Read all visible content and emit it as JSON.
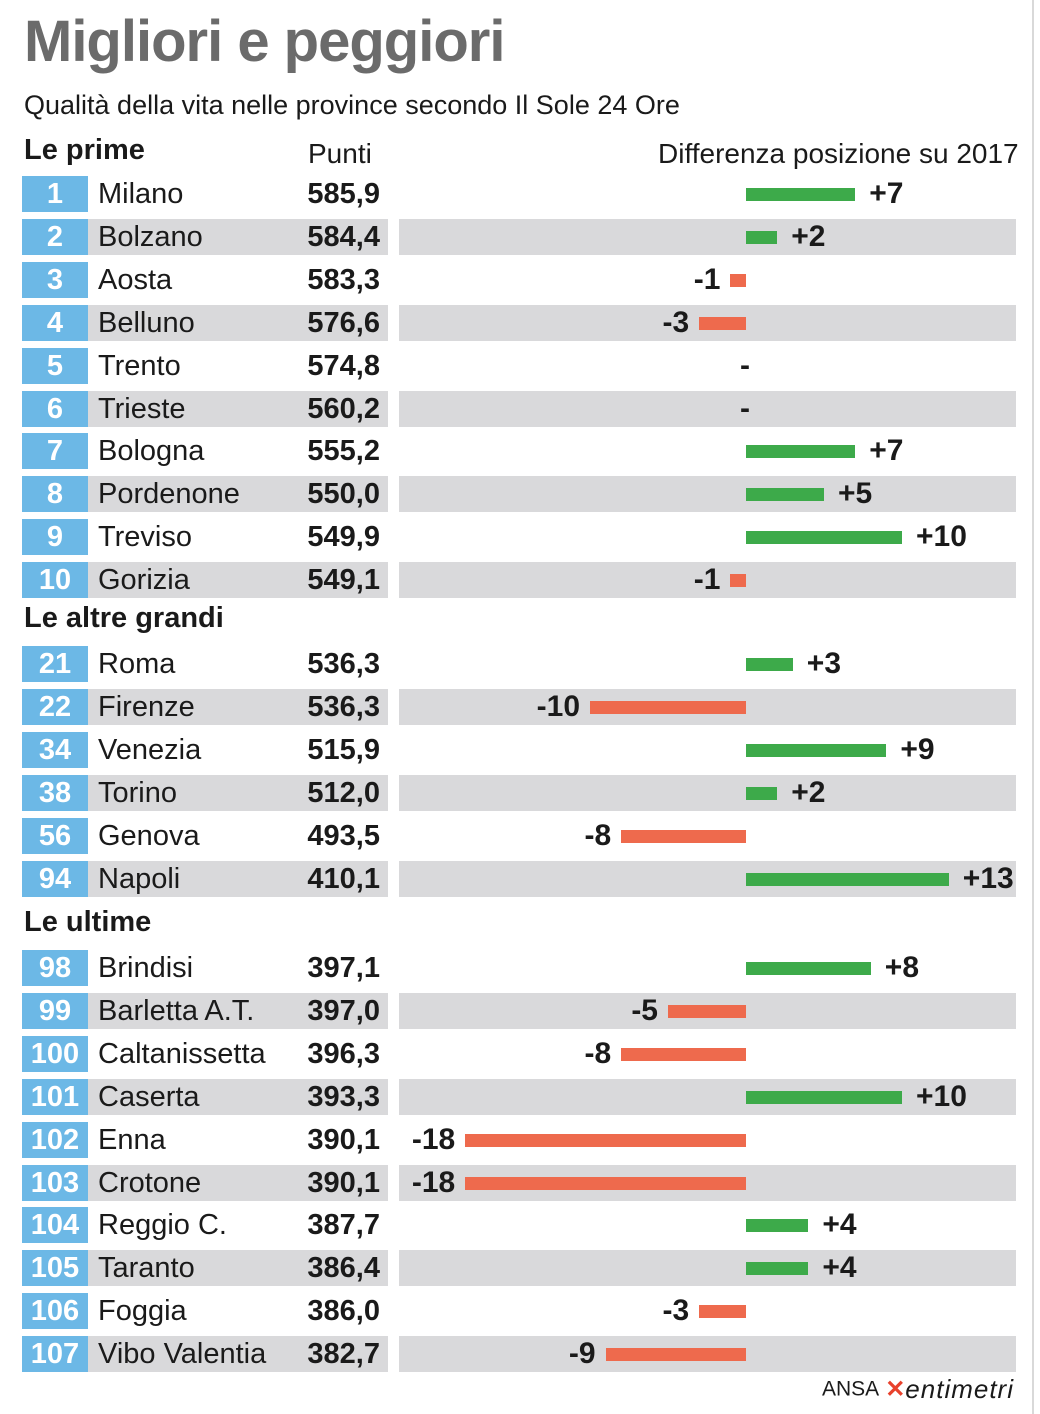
{
  "title": "Migliori e peggiori",
  "subtitle": "Qualità della vita nelle province secondo Il Sole 24 Ore",
  "headers": {
    "points": "Punti",
    "diff": "Differenza posizione su 2017"
  },
  "colors": {
    "rank_box": "#6cb8e6",
    "positive": "#3daa4a",
    "negative": "#ee6a4d",
    "row_shade": "#d9d9db"
  },
  "footer": {
    "ansa": "ANSA",
    "brand": "entimetri"
  },
  "chart_data": {
    "type": "bar",
    "title": "Migliori e peggiori",
    "subtitle": "Qualità della vita nelle province secondo Il Sole 24 Ore",
    "xlabel": "Differenza posizione su 2017",
    "ylabel": "Punti",
    "groups": [
      {
        "label": "Le prime",
        "rows": [
          {
            "rank": "1",
            "name": "Milano",
            "points": "585,9",
            "diff": 7,
            "diff_label": "+7"
          },
          {
            "rank": "2",
            "name": "Bolzano",
            "points": "584,4",
            "diff": 2,
            "diff_label": "+2"
          },
          {
            "rank": "3",
            "name": "Aosta",
            "points": "583,3",
            "diff": -1,
            "diff_label": "-1"
          },
          {
            "rank": "4",
            "name": "Belluno",
            "points": "576,6",
            "diff": -3,
            "diff_label": "-3"
          },
          {
            "rank": "5",
            "name": "Trento",
            "points": "574,8",
            "diff": 0,
            "diff_label": "-"
          },
          {
            "rank": "6",
            "name": "Trieste",
            "points": "560,2",
            "diff": 0,
            "diff_label": "-"
          },
          {
            "rank": "7",
            "name": "Bologna",
            "points": "555,2",
            "diff": 7,
            "diff_label": "+7"
          },
          {
            "rank": "8",
            "name": "Pordenone",
            "points": "550,0",
            "diff": 5,
            "diff_label": "+5"
          },
          {
            "rank": "9",
            "name": "Treviso",
            "points": "549,9",
            "diff": 10,
            "diff_label": "+10"
          },
          {
            "rank": "10",
            "name": "Gorizia",
            "points": "549,1",
            "diff": -1,
            "diff_label": "-1"
          }
        ]
      },
      {
        "label": "Le altre grandi",
        "rows": [
          {
            "rank": "21",
            "name": "Roma",
            "points": "536,3",
            "diff": 3,
            "diff_label": "+3"
          },
          {
            "rank": "22",
            "name": "Firenze",
            "points": "536,3",
            "diff": -10,
            "diff_label": "-10"
          },
          {
            "rank": "34",
            "name": "Venezia",
            "points": "515,9",
            "diff": 9,
            "diff_label": "+9"
          },
          {
            "rank": "38",
            "name": "Torino",
            "points": "512,0",
            "diff": 2,
            "diff_label": "+2"
          },
          {
            "rank": "56",
            "name": "Genova",
            "points": "493,5",
            "diff": -8,
            "diff_label": "-8"
          },
          {
            "rank": "94",
            "name": "Napoli",
            "points": "410,1",
            "diff": 13,
            "diff_label": "+13"
          }
        ]
      },
      {
        "label": "Le ultime",
        "rows": [
          {
            "rank": "98",
            "name": "Brindisi",
            "points": "397,1",
            "diff": 8,
            "diff_label": "+8"
          },
          {
            "rank": "99",
            "name": "Barletta A.T.",
            "points": "397,0",
            "diff": -5,
            "diff_label": "-5"
          },
          {
            "rank": "100",
            "name": "Caltanissetta",
            "points": "396,3",
            "diff": -8,
            "diff_label": "-8"
          },
          {
            "rank": "101",
            "name": "Caserta",
            "points": "393,3",
            "diff": 10,
            "diff_label": "+10"
          },
          {
            "rank": "102",
            "name": "Enna",
            "points": "390,1",
            "diff": -18,
            "diff_label": "-18"
          },
          {
            "rank": "103",
            "name": "Crotone",
            "points": "390,1",
            "diff": -18,
            "diff_label": "-18"
          },
          {
            "rank": "104",
            "name": "Reggio C.",
            "points": "387,7",
            "diff": 4,
            "diff_label": "+4"
          },
          {
            "rank": "105",
            "name": "Taranto",
            "points": "386,4",
            "diff": 4,
            "diff_label": "+4"
          },
          {
            "rank": "106",
            "name": "Foggia",
            "points": "386,0",
            "diff": -3,
            "diff_label": "-3"
          },
          {
            "rank": "107",
            "name": "Vibo Valentia",
            "points": "382,7",
            "diff": -9,
            "diff_label": "-9"
          }
        ]
      }
    ]
  }
}
